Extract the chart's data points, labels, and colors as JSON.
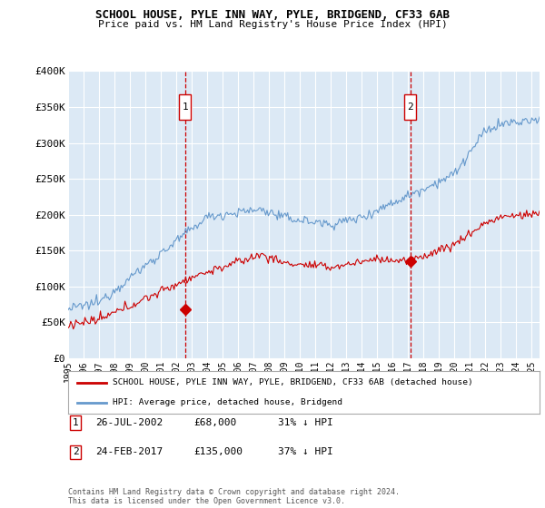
{
  "title": "SCHOOL HOUSE, PYLE INN WAY, PYLE, BRIDGEND, CF33 6AB",
  "subtitle": "Price paid vs. HM Land Registry's House Price Index (HPI)",
  "ylabel_ticks": [
    "£0",
    "£50K",
    "£100K",
    "£150K",
    "£200K",
    "£250K",
    "£300K",
    "£350K",
    "£400K"
  ],
  "ytick_values": [
    0,
    50000,
    100000,
    150000,
    200000,
    250000,
    300000,
    350000,
    400000
  ],
  "ylim": [
    0,
    400000
  ],
  "xlim_start": 1995.0,
  "xlim_end": 2025.5,
  "plot_bg_color": "#dce9f5",
  "grid_color": "#ffffff",
  "red_line_color": "#cc0000",
  "blue_line_color": "#6699cc",
  "sale1_x": 2002.57,
  "sale1_y": 68000,
  "sale2_x": 2017.15,
  "sale2_y": 135000,
  "sale1_label": "26-JUL-2002",
  "sale1_price": "£68,000",
  "sale1_hpi": "31% ↓ HPI",
  "sale2_label": "24-FEB-2017",
  "sale2_price": "£135,000",
  "sale2_hpi": "37% ↓ HPI",
  "legend_red": "SCHOOL HOUSE, PYLE INN WAY, PYLE, BRIDGEND, CF33 6AB (detached house)",
  "legend_blue": "HPI: Average price, detached house, Bridgend",
  "footnote": "Contains HM Land Registry data © Crown copyright and database right 2024.\nThis data is licensed under the Open Government Licence v3.0.",
  "xtick_years": [
    1995,
    1996,
    1997,
    1998,
    1999,
    2000,
    2001,
    2002,
    2003,
    2004,
    2005,
    2006,
    2007,
    2008,
    2009,
    2010,
    2011,
    2012,
    2013,
    2014,
    2015,
    2016,
    2017,
    2018,
    2019,
    2020,
    2021,
    2022,
    2023,
    2024,
    2025
  ]
}
